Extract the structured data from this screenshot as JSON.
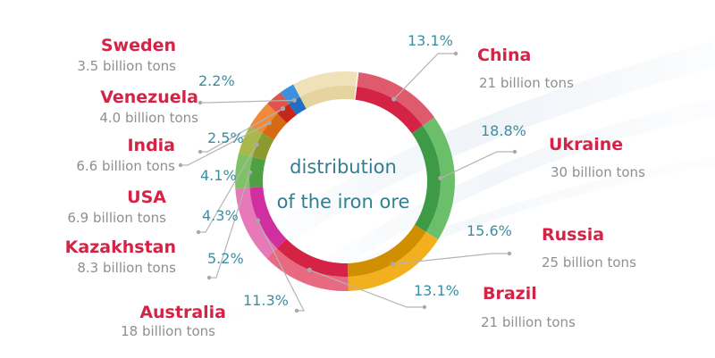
{
  "chart_data": {
    "type": "pie",
    "title": "distribution of the iron ore",
    "title_lines": [
      "distribution",
      "of the iron ore"
    ],
    "unit": "billion tons",
    "slices": [
      {
        "name": "China",
        "amount": "21 billion tons",
        "value": 21,
        "percent": "13.1%",
        "color": "#e05a6e",
        "color_dark": "#d42345"
      },
      {
        "name": "Ukraine",
        "amount": "30 billion tons",
        "value": 30,
        "percent": "18.8%",
        "color": "#6cbf6a",
        "color_dark": "#3e9a47"
      },
      {
        "name": "Russia",
        "amount": "25 billion tons",
        "value": 25,
        "percent": "15.6%",
        "color": "#f2b01e",
        "color_dark": "#d08f00"
      },
      {
        "name": "Brazil",
        "amount": "21 billion tons",
        "value": 21,
        "percent": "13.1%",
        "color": "#e86a80",
        "color_dark": "#d42345"
      },
      {
        "name": "Australia",
        "amount": "18 billion tons",
        "value": 18,
        "percent": "11.3%",
        "color": "#e879b8",
        "color_dark": "#d02fa0"
      },
      {
        "name": "Kazakhstan",
        "amount": "8.3 billion tons",
        "value": 8.3,
        "percent": "5.2%",
        "color": "#7fc266",
        "color_dark": "#4fa044"
      },
      {
        "name": "USA",
        "amount": "6.9 billion tons",
        "value": 6.9,
        "percent": "4.3%",
        "color": "#a9b84a",
        "color_dark": "#8a9a2e"
      },
      {
        "name": "India",
        "amount": "6.6 billion tons",
        "value": 6.6,
        "percent": "4.1%",
        "color": "#f08a3a",
        "color_dark": "#d56a12"
      },
      {
        "name": "Venezuela",
        "amount": "4.0 billion tons",
        "value": 4.0,
        "percent": "2.5%",
        "color": "#e1544a",
        "color_dark": "#c4271c"
      },
      {
        "name": "Sweden",
        "amount": "3.5 billion tons",
        "value": 3.5,
        "percent": "2.2%",
        "color": "#3d8fe0",
        "color_dark": "#1f6fc4"
      }
    ],
    "remainder_color": "#f0e2b8",
    "remainder_dark": "#e6d49e"
  }
}
